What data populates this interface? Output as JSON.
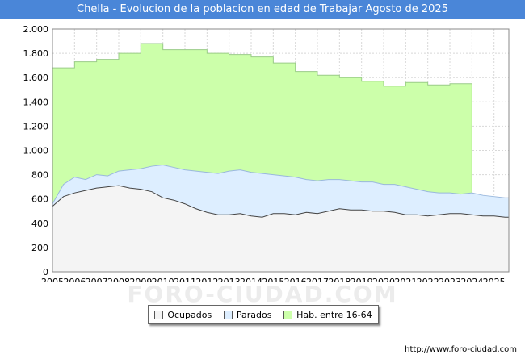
{
  "chart_data": {
    "type": "area",
    "title": "Chella - Evolucion de la poblacion en edad de Trabajar Agosto de 2025",
    "xlabel": "",
    "ylabel": "",
    "ylim": [
      0,
      2000
    ],
    "yticks": [
      0,
      200,
      400,
      600,
      800,
      1000,
      1200,
      1400,
      1600,
      1800,
      2000
    ],
    "ytick_labels": [
      "0",
      "200",
      "400",
      "600",
      "800",
      "1.000",
      "1.200",
      "1.400",
      "1.600",
      "1.800",
      "2.000"
    ],
    "xlim": [
      2005,
      2025.67
    ],
    "xtick_labels": [
      "2005",
      "2006",
      "2007",
      "2008",
      "2009",
      "2010",
      "2011",
      "2012",
      "2013",
      "2014",
      "2015",
      "2016",
      "2017",
      "2018",
      "2019",
      "2020",
      "2021",
      "2022",
      "2023",
      "2024",
      "2025"
    ],
    "grid": true,
    "legend_position": "bottom",
    "series": [
      {
        "name": "Hab. entre 16-64",
        "color": "#ccffaa",
        "stroke": "#9acc88",
        "x": [
          2005,
          2006,
          2007,
          2008,
          2009,
          2010,
          2011,
          2012,
          2013,
          2014,
          2015,
          2016,
          2017,
          2018,
          2019,
          2020,
          2021,
          2022,
          2023,
          2024
        ],
        "values": [
          1680,
          1730,
          1750,
          1800,
          1880,
          1830,
          1830,
          1800,
          1790,
          1770,
          1720,
          1650,
          1620,
          1600,
          1570,
          1530,
          1560,
          1540,
          1550,
          600
        ]
      },
      {
        "name": "Parados",
        "color": "#ddeeff",
        "stroke": "#9ab8dd",
        "x": [
          2005,
          2005.5,
          2006,
          2006.5,
          2007,
          2007.5,
          2008,
          2008.5,
          2009,
          2009.5,
          2010,
          2010.5,
          2011,
          2011.5,
          2012,
          2012.5,
          2013,
          2013.5,
          2014,
          2014.5,
          2015,
          2015.5,
          2016,
          2016.5,
          2017,
          2017.5,
          2018,
          2018.5,
          2019,
          2019.5,
          2020,
          2020.5,
          2021,
          2021.5,
          2022,
          2022.5,
          2023,
          2023.5,
          2024,
          2024.5,
          2025,
          2025.5
        ],
        "values": [
          560,
          720,
          780,
          760,
          800,
          790,
          830,
          840,
          850,
          870,
          880,
          860,
          840,
          830,
          820,
          810,
          830,
          840,
          820,
          810,
          800,
          790,
          780,
          760,
          750,
          760,
          760,
          750,
          740,
          740,
          720,
          720,
          700,
          680,
          660,
          650,
          650,
          640,
          650,
          630,
          620,
          610
        ]
      },
      {
        "name": "Ocupados",
        "color": "#f4f4f4",
        "stroke": "#444444",
        "x": [
          2005,
          2005.5,
          2006,
          2006.5,
          2007,
          2007.5,
          2008,
          2008.5,
          2009,
          2009.5,
          2010,
          2010.5,
          2011,
          2011.5,
          2012,
          2012.5,
          2013,
          2013.5,
          2014,
          2014.5,
          2015,
          2015.5,
          2016,
          2016.5,
          2017,
          2017.5,
          2018,
          2018.5,
          2019,
          2019.5,
          2020,
          2020.5,
          2021,
          2021.5,
          2022,
          2022.5,
          2023,
          2023.5,
          2024,
          2024.5,
          2025,
          2025.5
        ],
        "values": [
          540,
          620,
          650,
          670,
          690,
          700,
          710,
          690,
          680,
          660,
          610,
          590,
          560,
          520,
          490,
          470,
          470,
          480,
          460,
          450,
          480,
          480,
          470,
          490,
          480,
          500,
          520,
          510,
          510,
          500,
          500,
          490,
          470,
          470,
          460,
          470,
          480,
          480,
          470,
          460,
          460,
          450
        ]
      }
    ]
  },
  "legend": {
    "items": [
      {
        "label": "Ocupados",
        "color": "#f4f4f4"
      },
      {
        "label": "Parados",
        "color": "#ddeeff"
      },
      {
        "label": "Hab. entre 16-64",
        "color": "#ccffaa"
      }
    ]
  },
  "source": "http://www.foro-ciudad.com",
  "watermark": "FORO-CIUDAD.COM"
}
